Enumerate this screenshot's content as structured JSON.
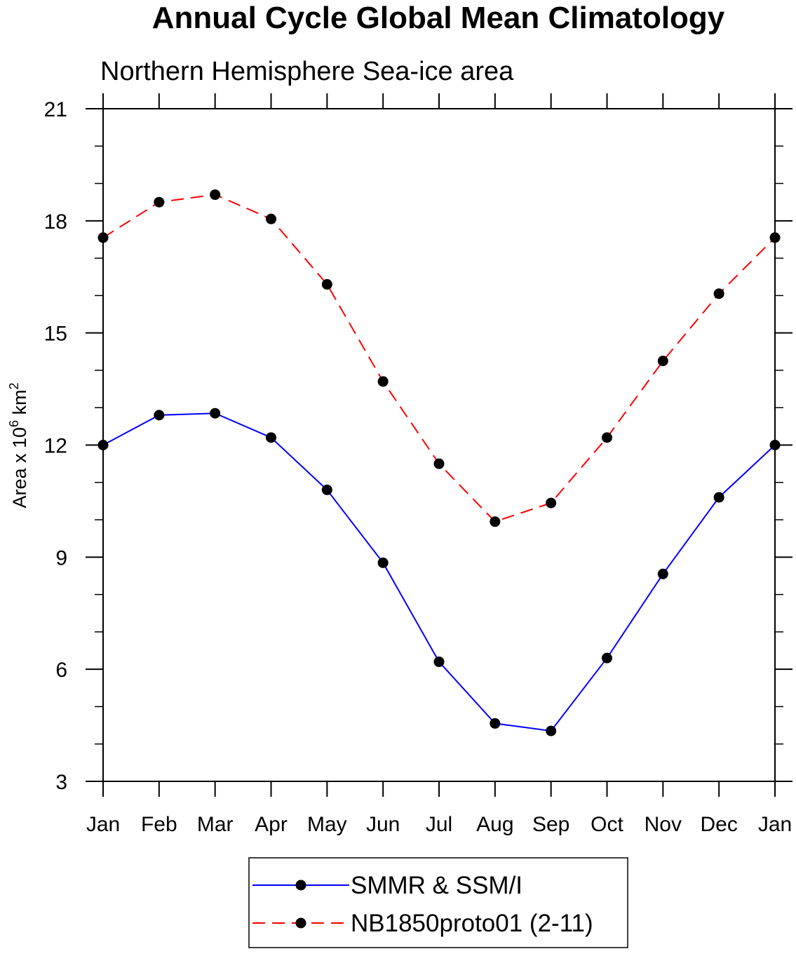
{
  "chart_data": {
    "type": "line",
    "title": "Annual Cycle Global Mean Climatology",
    "subtitle": "Northern Hemisphere Sea-ice area",
    "ylabel": {
      "prefix": "Area x 10",
      "exponent": "6",
      "middle": " km",
      "unit_exponent": "2"
    },
    "xlabel": "",
    "categories": [
      "Jan",
      "Feb",
      "Mar",
      "Apr",
      "May",
      "Jun",
      "Jul",
      "Aug",
      "Sep",
      "Oct",
      "Nov",
      "Dec",
      "Jan"
    ],
    "ylim": [
      3,
      21
    ],
    "yticks": [
      3,
      6,
      9,
      12,
      15,
      18,
      21
    ],
    "y_minor_step": 1,
    "grid": false,
    "legend_position": "bottom",
    "series": [
      {
        "name": "SMMR & SSM/I",
        "color": "#0000ff",
        "line_style": "solid",
        "marker": "filled-circle",
        "values": [
          12.0,
          12.8,
          12.85,
          12.2,
          10.8,
          8.85,
          6.2,
          4.55,
          4.35,
          6.3,
          8.55,
          10.6,
          12.0
        ]
      },
      {
        "name": "NB1850proto01 (2-11)",
        "color": "#ff0000",
        "line_style": "dashed",
        "marker": "filled-circle",
        "values": [
          17.55,
          18.5,
          18.7,
          18.05,
          16.3,
          13.7,
          11.5,
          9.95,
          10.45,
          12.2,
          14.25,
          16.05,
          17.55
        ]
      }
    ]
  }
}
